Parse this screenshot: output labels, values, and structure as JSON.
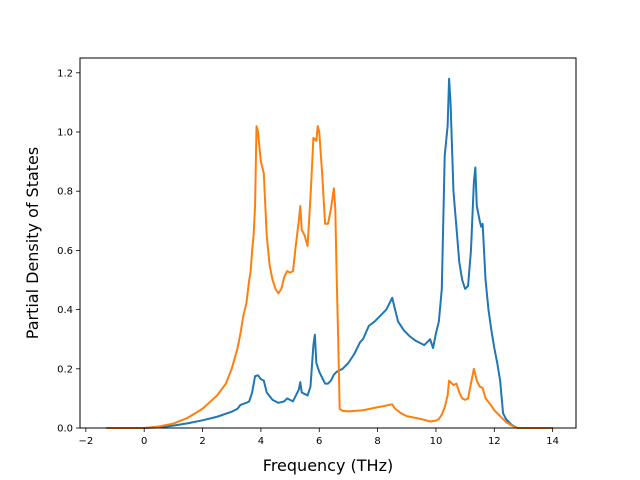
{
  "chart_data": {
    "type": "line",
    "title": "",
    "xlabel": "Frequency (THz)",
    "ylabel": "Partial Density of States",
    "xlim": [
      -2.2,
      14.8
    ],
    "ylim": [
      0.0,
      1.25
    ],
    "xticks": [
      -2,
      0,
      2,
      4,
      6,
      8,
      10,
      12,
      14
    ],
    "yticks": [
      0.0,
      0.2,
      0.4,
      0.6,
      0.8,
      1.0,
      1.2
    ],
    "xtick_labels": [
      "−2",
      "0",
      "2",
      "4",
      "6",
      "8",
      "10",
      "12",
      "14"
    ],
    "ytick_labels": [
      "0.0",
      "0.2",
      "0.4",
      "0.6",
      "0.8",
      "1.0",
      "1.2"
    ],
    "grid": false,
    "legend": "none",
    "series": [
      {
        "color": "#1f77b4",
        "points": [
          [
            -1.3,
            0.0
          ],
          [
            0.0,
            0.0
          ],
          [
            0.5,
            0.002
          ],
          [
            1.0,
            0.008
          ],
          [
            1.5,
            0.016
          ],
          [
            2.0,
            0.026
          ],
          [
            2.5,
            0.038
          ],
          [
            3.0,
            0.055
          ],
          [
            3.2,
            0.065
          ],
          [
            3.3,
            0.078
          ],
          [
            3.5,
            0.085
          ],
          [
            3.6,
            0.09
          ],
          [
            3.7,
            0.12
          ],
          [
            3.8,
            0.175
          ],
          [
            3.9,
            0.178
          ],
          [
            4.0,
            0.165
          ],
          [
            4.1,
            0.16
          ],
          [
            4.2,
            0.12
          ],
          [
            4.4,
            0.095
          ],
          [
            4.6,
            0.085
          ],
          [
            4.8,
            0.09
          ],
          [
            4.9,
            0.1
          ],
          [
            5.0,
            0.095
          ],
          [
            5.1,
            0.09
          ],
          [
            5.3,
            0.13
          ],
          [
            5.35,
            0.155
          ],
          [
            5.4,
            0.12
          ],
          [
            5.6,
            0.11
          ],
          [
            5.7,
            0.14
          ],
          [
            5.8,
            0.28
          ],
          [
            5.85,
            0.315
          ],
          [
            5.9,
            0.22
          ],
          [
            6.0,
            0.19
          ],
          [
            6.1,
            0.17
          ],
          [
            6.2,
            0.15
          ],
          [
            6.3,
            0.15
          ],
          [
            6.4,
            0.16
          ],
          [
            6.5,
            0.18
          ],
          [
            6.6,
            0.19
          ],
          [
            6.8,
            0.2
          ],
          [
            7.0,
            0.22
          ],
          [
            7.2,
            0.25
          ],
          [
            7.4,
            0.29
          ],
          [
            7.5,
            0.3
          ],
          [
            7.7,
            0.345
          ],
          [
            7.9,
            0.36
          ],
          [
            8.1,
            0.38
          ],
          [
            8.3,
            0.4
          ],
          [
            8.5,
            0.44
          ],
          [
            8.6,
            0.4
          ],
          [
            8.7,
            0.36
          ],
          [
            8.9,
            0.33
          ],
          [
            9.1,
            0.31
          ],
          [
            9.3,
            0.295
          ],
          [
            9.5,
            0.285
          ],
          [
            9.6,
            0.28
          ],
          [
            9.7,
            0.29
          ],
          [
            9.8,
            0.3
          ],
          [
            9.9,
            0.27
          ],
          [
            10.0,
            0.32
          ],
          [
            10.1,
            0.36
          ],
          [
            10.2,
            0.47
          ],
          [
            10.3,
            0.92
          ],
          [
            10.4,
            1.02
          ],
          [
            10.45,
            1.18
          ],
          [
            10.5,
            1.1
          ],
          [
            10.6,
            0.8
          ],
          [
            10.7,
            0.68
          ],
          [
            10.8,
            0.56
          ],
          [
            10.9,
            0.5
          ],
          [
            11.0,
            0.47
          ],
          [
            11.1,
            0.48
          ],
          [
            11.2,
            0.6
          ],
          [
            11.3,
            0.83
          ],
          [
            11.35,
            0.88
          ],
          [
            11.4,
            0.75
          ],
          [
            11.5,
            0.7
          ],
          [
            11.55,
            0.68
          ],
          [
            11.6,
            0.69
          ],
          [
            11.7,
            0.5
          ],
          [
            11.8,
            0.4
          ],
          [
            11.9,
            0.33
          ],
          [
            12.0,
            0.27
          ],
          [
            12.1,
            0.22
          ],
          [
            12.2,
            0.16
          ],
          [
            12.3,
            0.05
          ],
          [
            12.4,
            0.03
          ],
          [
            12.5,
            0.02
          ],
          [
            12.6,
            0.01
          ],
          [
            12.8,
            0.0
          ],
          [
            14.0,
            0.0
          ]
        ]
      },
      {
        "color": "#ff7f0e",
        "points": [
          [
            -1.3,
            0.0
          ],
          [
            0.0,
            0.0
          ],
          [
            0.5,
            0.005
          ],
          [
            1.0,
            0.015
          ],
          [
            1.5,
            0.035
          ],
          [
            2.0,
            0.065
          ],
          [
            2.5,
            0.11
          ],
          [
            2.8,
            0.15
          ],
          [
            3.0,
            0.2
          ],
          [
            3.2,
            0.27
          ],
          [
            3.3,
            0.32
          ],
          [
            3.4,
            0.38
          ],
          [
            3.5,
            0.42
          ],
          [
            3.6,
            0.5
          ],
          [
            3.65,
            0.53
          ],
          [
            3.7,
            0.6
          ],
          [
            3.75,
            0.65
          ],
          [
            3.8,
            0.75
          ],
          [
            3.85,
            1.02
          ],
          [
            3.9,
            1.0
          ],
          [
            4.0,
            0.9
          ],
          [
            4.1,
            0.86
          ],
          [
            4.2,
            0.65
          ],
          [
            4.3,
            0.55
          ],
          [
            4.4,
            0.5
          ],
          [
            4.5,
            0.47
          ],
          [
            4.6,
            0.455
          ],
          [
            4.7,
            0.47
          ],
          [
            4.8,
            0.51
          ],
          [
            4.9,
            0.53
          ],
          [
            5.0,
            0.525
          ],
          [
            5.1,
            0.53
          ],
          [
            5.2,
            0.62
          ],
          [
            5.3,
            0.7
          ],
          [
            5.35,
            0.75
          ],
          [
            5.4,
            0.67
          ],
          [
            5.5,
            0.65
          ],
          [
            5.6,
            0.615
          ],
          [
            5.7,
            0.78
          ],
          [
            5.8,
            0.98
          ],
          [
            5.9,
            0.97
          ],
          [
            5.95,
            1.02
          ],
          [
            6.0,
            1.0
          ],
          [
            6.1,
            0.86
          ],
          [
            6.2,
            0.69
          ],
          [
            6.3,
            0.69
          ],
          [
            6.4,
            0.74
          ],
          [
            6.5,
            0.81
          ],
          [
            6.55,
            0.74
          ],
          [
            6.6,
            0.5
          ],
          [
            6.65,
            0.3
          ],
          [
            6.7,
            0.065
          ],
          [
            6.8,
            0.058
          ],
          [
            7.0,
            0.056
          ],
          [
            7.5,
            0.06
          ],
          [
            8.0,
            0.07
          ],
          [
            8.5,
            0.08
          ],
          [
            8.6,
            0.065
          ],
          [
            8.8,
            0.05
          ],
          [
            9.0,
            0.04
          ],
          [
            9.5,
            0.03
          ],
          [
            9.8,
            0.022
          ],
          [
            10.0,
            0.025
          ],
          [
            10.1,
            0.03
          ],
          [
            10.2,
            0.045
          ],
          [
            10.3,
            0.07
          ],
          [
            10.4,
            0.11
          ],
          [
            10.45,
            0.16
          ],
          [
            10.5,
            0.155
          ],
          [
            10.6,
            0.145
          ],
          [
            10.7,
            0.15
          ],
          [
            10.8,
            0.12
          ],
          [
            10.9,
            0.1
          ],
          [
            11.0,
            0.095
          ],
          [
            11.1,
            0.1
          ],
          [
            11.2,
            0.15
          ],
          [
            11.3,
            0.2
          ],
          [
            11.4,
            0.16
          ],
          [
            11.5,
            0.14
          ],
          [
            11.6,
            0.135
          ],
          [
            11.7,
            0.1
          ],
          [
            11.9,
            0.075
          ],
          [
            12.0,
            0.06
          ],
          [
            12.2,
            0.04
          ],
          [
            12.4,
            0.02
          ],
          [
            12.6,
            0.008
          ],
          [
            12.8,
            0.0
          ],
          [
            14.0,
            0.0
          ]
        ]
      }
    ]
  }
}
